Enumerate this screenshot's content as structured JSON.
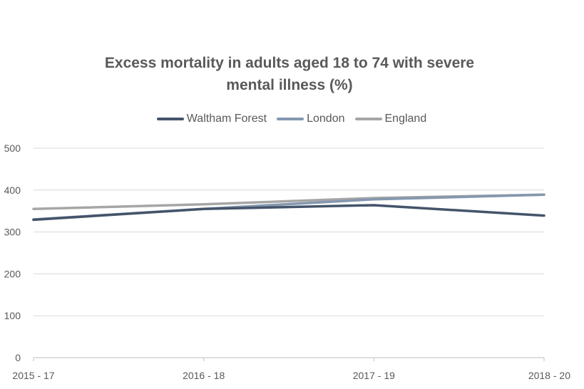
{
  "chart_data": {
    "type": "line",
    "title_line1": "Excess mortality in adults aged 18 to 74 with severe",
    "title_line2": "mental illness (%)",
    "xlabel": "",
    "ylabel": "",
    "categories": [
      "2015 - 17",
      "2016 - 18",
      "2017 - 19",
      "2018 - 20"
    ],
    "ylim": [
      0,
      500
    ],
    "yticks": [
      0,
      100,
      200,
      300,
      400,
      500
    ],
    "grid": true,
    "legend_position": "top",
    "series": [
      {
        "name": "Waltham Forest",
        "color": "#44546a",
        "values": [
          329,
          355,
          364,
          339
        ]
      },
      {
        "name": "London",
        "color": "#8497b0",
        "values": [
          330,
          355,
          378,
          389
        ]
      },
      {
        "name": "England",
        "color": "#a6a6a6",
        "values": [
          355,
          366,
          381,
          389
        ]
      }
    ]
  }
}
